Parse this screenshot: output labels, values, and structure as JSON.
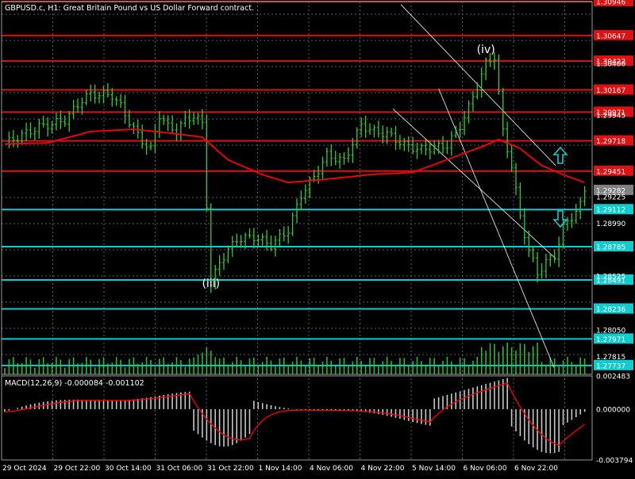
{
  "chart_data": {
    "type": "line",
    "title": "GBPUSD.c, H1:  Great Britain Pound vs US Dollar Forward contract.",
    "price_axis": {
      "ylim": [
        1.27659,
        1.30946
      ],
      "ticks": [
        "1.30400",
        "1.29945",
        "1.29225",
        "1.28990",
        "1.28525",
        "1.28050",
        "1.27815"
      ]
    },
    "macd_axis": {
      "ylim": [
        -0.003794,
        0.002483
      ],
      "ticks": [
        "0.002483",
        "0.000000",
        "-0.003794"
      ]
    },
    "time_labels": [
      "29 Oct 2024",
      "29 Oct 22:00",
      "30 Oct 14:00",
      "31 Oct 06:00",
      "31 Oct 22:00",
      "1 Nov 14:00",
      "4 Nov 06:00",
      "4 Nov 22:00",
      "5 Nov 14:00",
      "6 Nov 06:00",
      "6 Nov 22:00"
    ],
    "resistance_levels": [
      "1.30946",
      "1.30647",
      "1.30422",
      "1.30167",
      "1.29971",
      "1.29718",
      "1.29451"
    ],
    "support_levels": [
      "1.29112",
      "1.28785",
      "1.28491",
      "1.28236",
      "1.27971",
      "1.27737"
    ],
    "current_price": "1.29282",
    "wave_labels": [
      {
        "text": "(iii)",
        "x_index": 48,
        "y": 1.2843
      },
      {
        "text": "(iv)",
        "x_index": 112,
        "y": 1.3049
      }
    ],
    "macd_label": "MACD(12,26,9) -0.000084 -0.001102",
    "macd_value": -8.4e-05,
    "macd_signal": -0.001102,
    "candle_color": "#32cd32",
    "ma_color": "#ff0000",
    "resistance_color": "#dd1111",
    "support_color": "#11cccc",
    "grid": true
  }
}
